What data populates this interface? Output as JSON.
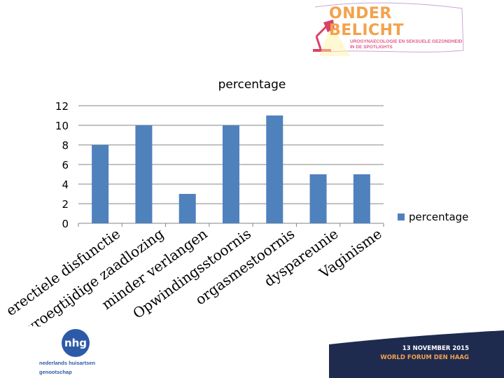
{
  "header": {
    "brand_title": "ONDER BELICHT",
    "brand_subtitle_1": "UROGYNAECOLOGIE EN SEKSUELE GEZONDHEID",
    "brand_subtitle_2": "IN DE SPOTLIGHTS",
    "lamp_icon": "desk-lamp-icon"
  },
  "footer": {
    "org_logo_text": "nhg",
    "org_name_1": "nederlands huisartsen",
    "org_name_2": "genootschap",
    "event_date": "13 NOVEMBER 2015",
    "event_place": "WORLD FORUM DEN HAAG"
  },
  "colors": {
    "bar": "#4f81bd",
    "grid": "#868686",
    "banner_dark": "#1f2a4f",
    "accent_orange": "#f3a24b",
    "accent_pink": "#e05a8a"
  },
  "chart_data": {
    "type": "bar",
    "title": "percentage",
    "categories": [
      "erectiele disfunctie",
      "vroegtijdige zaadlozing",
      "minder verlangen",
      "Opwindingsstoornis",
      "orgasmestoornis",
      "dyspareunie",
      "Vaginisme"
    ],
    "series": [
      {
        "name": "percentage",
        "values": [
          8,
          10,
          3,
          10,
          11,
          5,
          5
        ]
      }
    ],
    "ylim": [
      0,
      12
    ],
    "yticks": [
      0,
      2,
      4,
      6,
      8,
      10,
      12
    ],
    "grid": true,
    "legend": "right"
  }
}
